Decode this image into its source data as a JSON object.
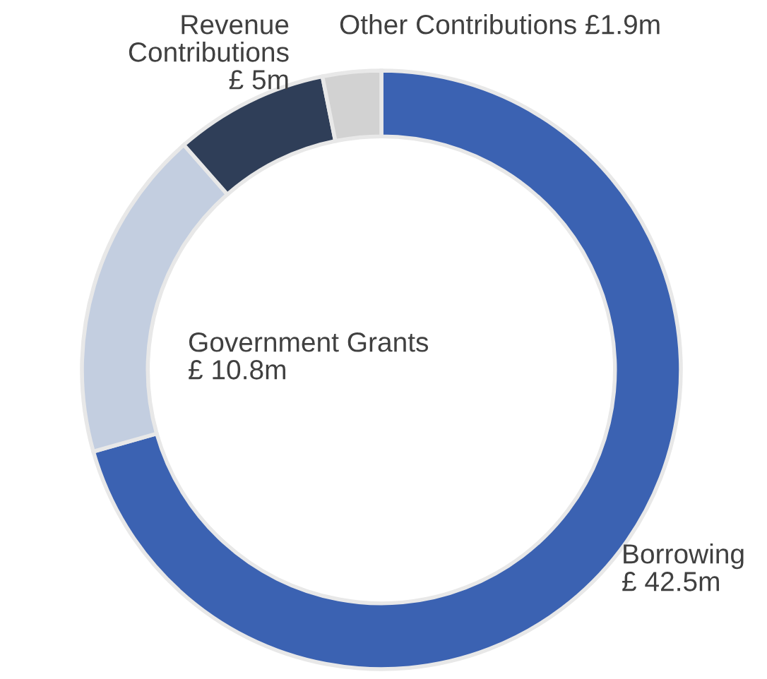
{
  "chart_data": {
    "type": "donut",
    "categories": [
      "Borrowing",
      "Government Grants",
      "Revenue Contributions",
      "Other Contributions"
    ],
    "values": [
      42.5,
      10.8,
      5,
      1.9
    ],
    "value_labels": [
      "£ 42.5m",
      "£ 10.8m",
      "£ 5m",
      "£1.9m"
    ],
    "colors": [
      "#3b62b2",
      "#c3cee0",
      "#2f3e58",
      "#d2d2d2"
    ],
    "legend": false
  }
}
